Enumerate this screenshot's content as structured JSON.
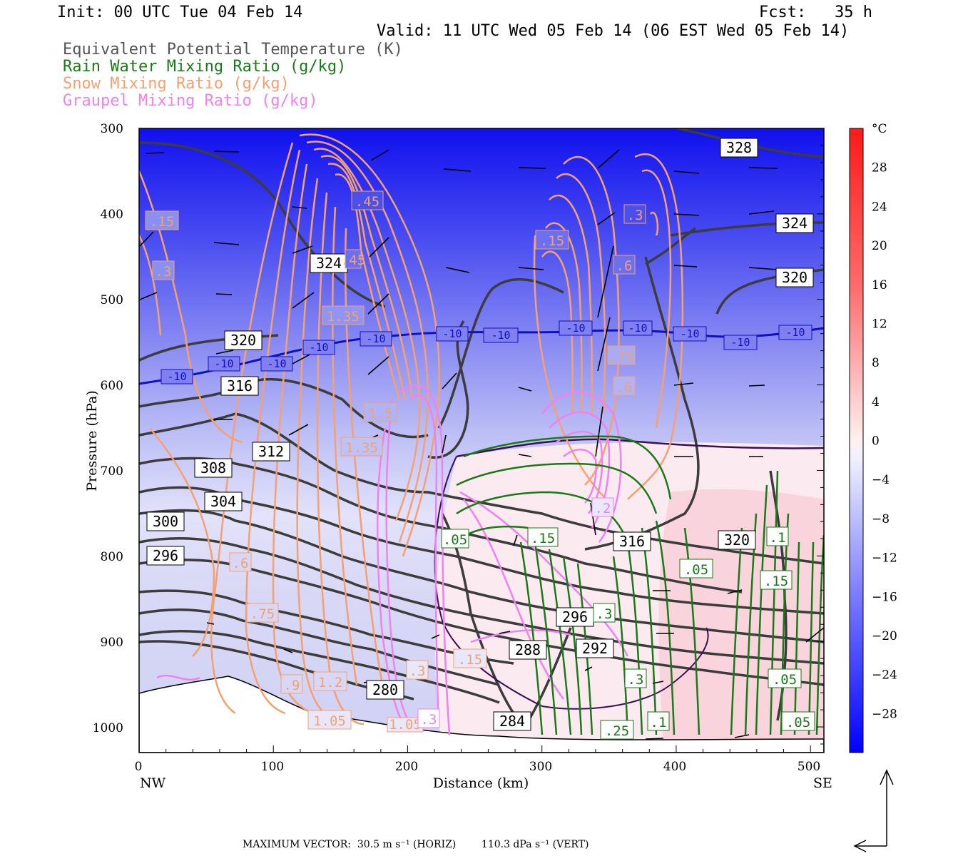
{
  "header": {
    "init": "Init: 00 UTC Tue 04 Feb 14",
    "fcst": "Fcst:   35 h",
    "valid": "Valid: 11 UTC Wed 05 Feb 14 (06 EST Wed 05 Feb 14)",
    "legend": [
      {
        "text": "Equivalent Potential Temperature (K)",
        "color": "#555555"
      },
      {
        "text": "Rain Water Mixing Ratio (g/kg)",
        "color": "#1a7a1a"
      },
      {
        "text": "Snow Mixing Ratio (g/kg)",
        "color": "#f4a070"
      },
      {
        "text": "Graupel Mixing Ratio (g/kg)",
        "color": "#ee82ee"
      }
    ]
  },
  "chart_data": {
    "type": "cross-section",
    "xlabel": "Distance (km)",
    "ylabel": "Pressure (hPa)",
    "xlim": [
      0,
      510
    ],
    "ylim": [
      1030,
      300
    ],
    "x_ticks": [
      "0",
      "100",
      "200",
      "300",
      "400",
      "500"
    ],
    "y_ticks": [
      "300",
      "400",
      "500",
      "600",
      "700",
      "800",
      "900",
      "1000"
    ],
    "x_end_labels": {
      "left": "NW",
      "right": "SE"
    },
    "colorbar": {
      "unit": "°C",
      "ticks": [
        "28",
        "24",
        "20",
        "16",
        "12",
        "8",
        "4",
        "0",
        "-4",
        "-8",
        "-12",
        "-16",
        "-20",
        "-24",
        "-28"
      ],
      "range": [
        -32,
        32
      ],
      "cold_color": "#0000ff",
      "warm_color": "#ff0000"
    },
    "theta_e_labels": [
      "328",
      "324",
      "320",
      "324",
      "320",
      "316",
      "312",
      "308",
      "304",
      "300",
      "296",
      "316",
      "320",
      "296",
      "292",
      "288",
      "280",
      "284"
    ],
    "temperature_labels": [
      "-10",
      "-10",
      "-10",
      "-10",
      "-10",
      "-10",
      "-10",
      "-10",
      "-10",
      "-10",
      "-10",
      "-10"
    ],
    "snow_labels": [
      ".15",
      ".3",
      ".45",
      ".3",
      ".15",
      ".45",
      ".6",
      "1.35",
      "1.5",
      "1.35",
      ".75",
      ".6",
      ".6",
      ".75",
      ".9",
      "1.2",
      "1.05",
      "1.05",
      ".15",
      ".3",
      "1.2"
    ],
    "rain_labels": [
      ".05",
      ".15",
      ".05",
      ".1",
      ".15",
      ".3",
      ".3",
      ".05",
      ".25",
      ".1",
      ".05"
    ],
    "graupel_labels": [
      ".3",
      ".15",
      ".3",
      ".15",
      ".2"
    ],
    "max_vector": {
      "horiz": "30.5 m s⁻¹ (HORIZ)",
      "vert": "110.3 dPa s⁻¹ (VERT)",
      "label": "MAXIMUM VECTOR:"
    }
  }
}
